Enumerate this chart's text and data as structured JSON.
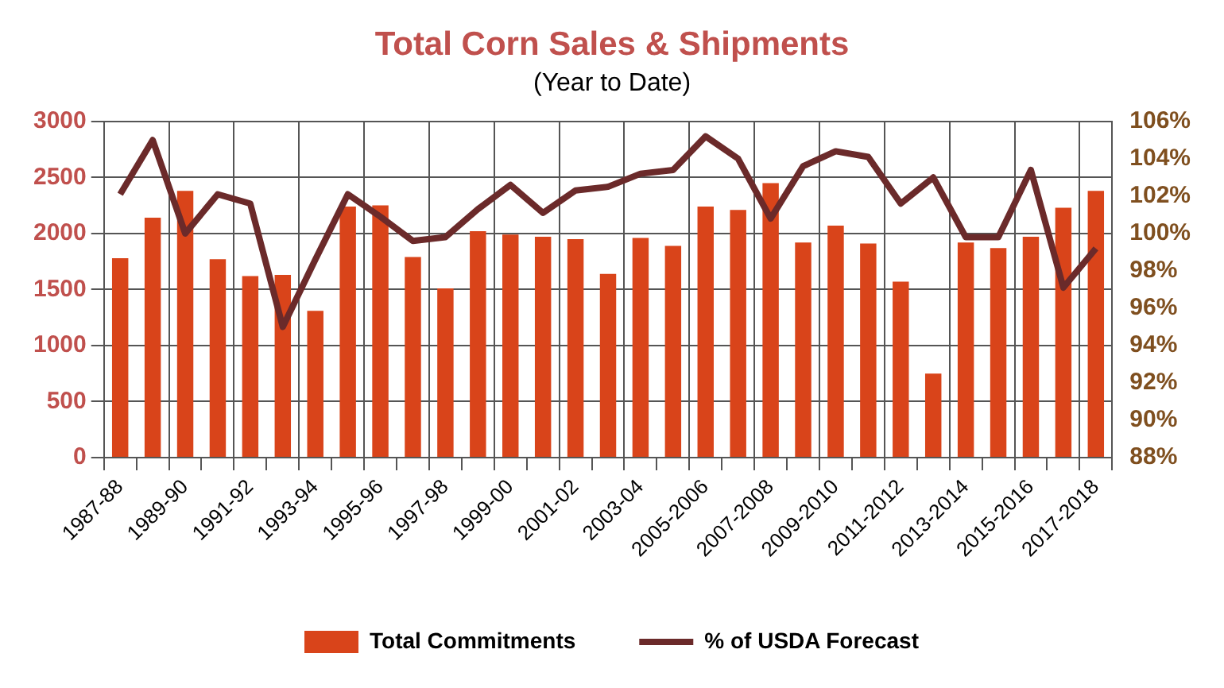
{
  "chart_data": {
    "type": "bar",
    "title": "Total Corn Sales & Shipments",
    "subtitle": "(Year to Date)",
    "categories": [
      "1987-88",
      null,
      "1989-90",
      null,
      "1991-92",
      null,
      "1993-94",
      null,
      "1995-96",
      null,
      "1997-98",
      null,
      "1999-00",
      null,
      "2001-02",
      null,
      "2003-04",
      null,
      "2005-2006",
      null,
      "2007-2008",
      null,
      "2009-2010",
      null,
      "2011-2012",
      null,
      "2013-2014",
      null,
      "2015-2016",
      null,
      "2017-2018"
    ],
    "series": [
      {
        "name": "Total Commitments",
        "color": "#d9441a",
        "values": [
          1780,
          2140,
          2380,
          1770,
          1620,
          1630,
          1310,
          2240,
          2250,
          1790,
          1510,
          2020,
          1990,
          1970,
          1950,
          1640,
          1960,
          1890,
          2240,
          2210,
          2450,
          1920,
          2070,
          1910,
          1570,
          750,
          1920,
          1870,
          1970,
          2230,
          2380
        ]
      },
      {
        "name": "% of USDA Forecast",
        "type": "line",
        "axis": "y2",
        "color": "#6b2a2a",
        "values": [
          102.1,
          105.0,
          100.0,
          102.1,
          101.6,
          95.0,
          98.6,
          102.1,
          100.9,
          99.6,
          99.8,
          101.3,
          102.6,
          101.1,
          102.3,
          102.5,
          103.2,
          103.4,
          105.2,
          104.0,
          100.8,
          103.6,
          104.4,
          104.1,
          101.6,
          103.0,
          99.8,
          99.8,
          103.4,
          97.1,
          99.2
        ]
      }
    ],
    "ylim": [
      0,
      3000
    ],
    "yticks": [
      0,
      500,
      1000,
      1500,
      2000,
      2500,
      3000
    ],
    "y2lim": [
      88,
      106
    ],
    "y2ticks": [
      {
        "value": 88,
        "label": "88%"
      },
      {
        "value": 90,
        "label": "90%"
      },
      {
        "value": 92,
        "label": "92%"
      },
      {
        "value": 94,
        "label": "94%"
      },
      {
        "value": 96,
        "label": "96%"
      },
      {
        "value": 98,
        "label": "98%"
      },
      {
        "value": 100,
        "label": "100%"
      },
      {
        "value": 102,
        "label": "102%"
      },
      {
        "value": 104,
        "label": "104%"
      },
      {
        "value": 106,
        "label": "106%"
      }
    ],
    "grid": true,
    "legend": "bottom",
    "marker": "none",
    "line_style": "solid"
  }
}
